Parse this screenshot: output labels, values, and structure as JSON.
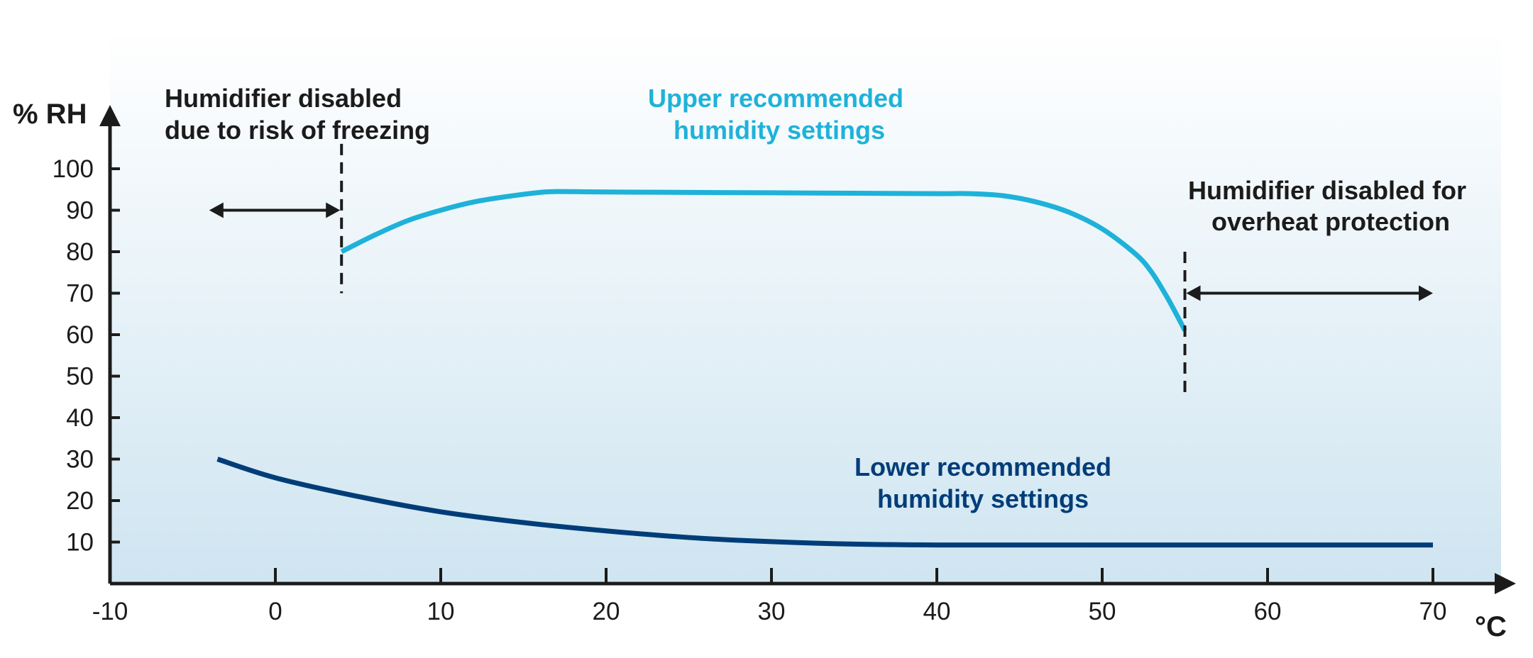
{
  "colors": {
    "upper": "#1eb2d9",
    "lower": "#003d78",
    "axis": "#1c1b1b",
    "background_top": "#ffffff",
    "background_bottom": "#cfe5f1"
  },
  "chart_data": {
    "type": "line",
    "xlabel": "°C",
    "ylabel": "% RH",
    "xlim": [
      -10,
      75
    ],
    "ylim": [
      0,
      110
    ],
    "x_ticks": [
      -10,
      0,
      10,
      20,
      30,
      40,
      50,
      60,
      70
    ],
    "y_ticks": [
      10,
      20,
      30,
      40,
      50,
      60,
      70,
      80,
      90,
      100
    ],
    "grid": false,
    "series": [
      {
        "name": "Upper recommended humidity settings",
        "color": "#1eb2d9",
        "x": [
          4,
          6,
          8,
          10,
          12,
          14,
          16,
          17,
          20,
          25,
          30,
          35,
          40,
          42,
          44,
          46,
          48,
          50,
          52,
          53,
          54,
          55
        ],
        "y": [
          80,
          84,
          87.5,
          90,
          92,
          93.3,
          94.3,
          94.5,
          94.4,
          94.3,
          94.2,
          94.1,
          94.0,
          94.0,
          93.5,
          92.0,
          89.5,
          85.5,
          79.5,
          75,
          68.5,
          61
        ]
      },
      {
        "name": "Lower recommended humidity settings",
        "color": "#003d78",
        "x": [
          -3.5,
          0,
          5,
          10,
          15,
          20,
          25,
          30,
          35,
          40,
          45,
          50,
          55,
          60,
          65,
          70
        ],
        "y": [
          30,
          25.5,
          21,
          17.3,
          14.7,
          12.7,
          11.1,
          10.1,
          9.5,
          9.3,
          9.3,
          9.3,
          9.3,
          9.3,
          9.3,
          9.3
        ]
      }
    ],
    "annotations": {
      "freezing": {
        "lines": [
          "Humidifier disabled",
          "due to risk of freezing"
        ],
        "x_cutoff": 4,
        "arrow_from_x": -4,
        "arrow_y": 90,
        "dash_y_range": [
          70,
          106
        ]
      },
      "upper_label": {
        "lines": [
          "Upper recommended",
          "humidity settings"
        ]
      },
      "lower_label": {
        "lines": [
          "Lower recommended",
          "humidity settings"
        ]
      },
      "overheat": {
        "lines": [
          "Humidifier disabled for",
          "overheat protection"
        ],
        "x_cutoff": 55,
        "arrow_to_x": 70,
        "arrow_y": 70,
        "dash_y_range": [
          45,
          80
        ]
      }
    }
  }
}
